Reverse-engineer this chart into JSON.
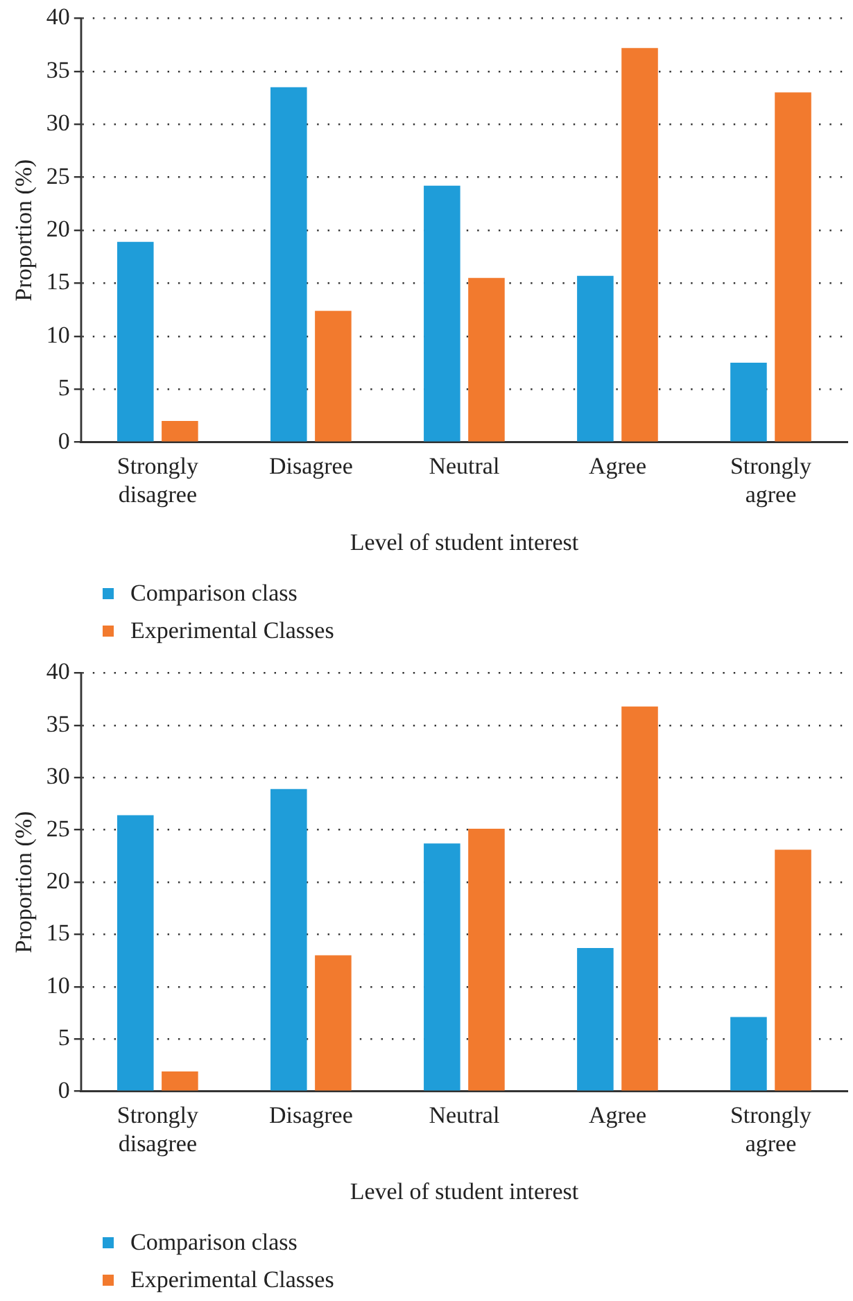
{
  "chart_data": [
    {
      "type": "bar",
      "xlabel": "Level of student interest",
      "ylabel": "Proportion (%)",
      "categories": [
        "Strongly\ndisagree",
        "Disagree",
        "Neutral",
        "Agree",
        "Strongly\nagree"
      ],
      "series": [
        {
          "name": "Comparison class",
          "color": "#1f9dd9",
          "values": [
            18.9,
            33.5,
            24.2,
            15.7,
            7.5
          ]
        },
        {
          "name": "Experimental Classes",
          "color": "#f27a2e",
          "values": [
            2.0,
            12.4,
            15.5,
            37.2,
            33.0
          ]
        }
      ],
      "ylim": [
        0,
        40
      ],
      "yticks": [
        0,
        5,
        10,
        15,
        20,
        25,
        30,
        35,
        40
      ],
      "grid": "y",
      "legend": "bottom left"
    },
    {
      "type": "bar",
      "xlabel": "Level of student interest",
      "ylabel": "Proportion (%)",
      "categories": [
        "Strongly\ndisagree",
        "Disagree",
        "Neutral",
        "Agree",
        "Strongly\nagree"
      ],
      "series": [
        {
          "name": "Comparison class",
          "color": "#1f9dd9",
          "values": [
            26.4,
            28.9,
            23.7,
            13.7,
            7.1
          ]
        },
        {
          "name": "Experimental Classes",
          "color": "#f27a2e",
          "values": [
            1.9,
            13.0,
            25.1,
            36.8,
            23.1
          ]
        }
      ],
      "ylim": [
        0,
        40
      ],
      "yticks": [
        0,
        5,
        10,
        15,
        20,
        25,
        30,
        35,
        40
      ],
      "grid": "y",
      "legend": "bottom left"
    }
  ]
}
